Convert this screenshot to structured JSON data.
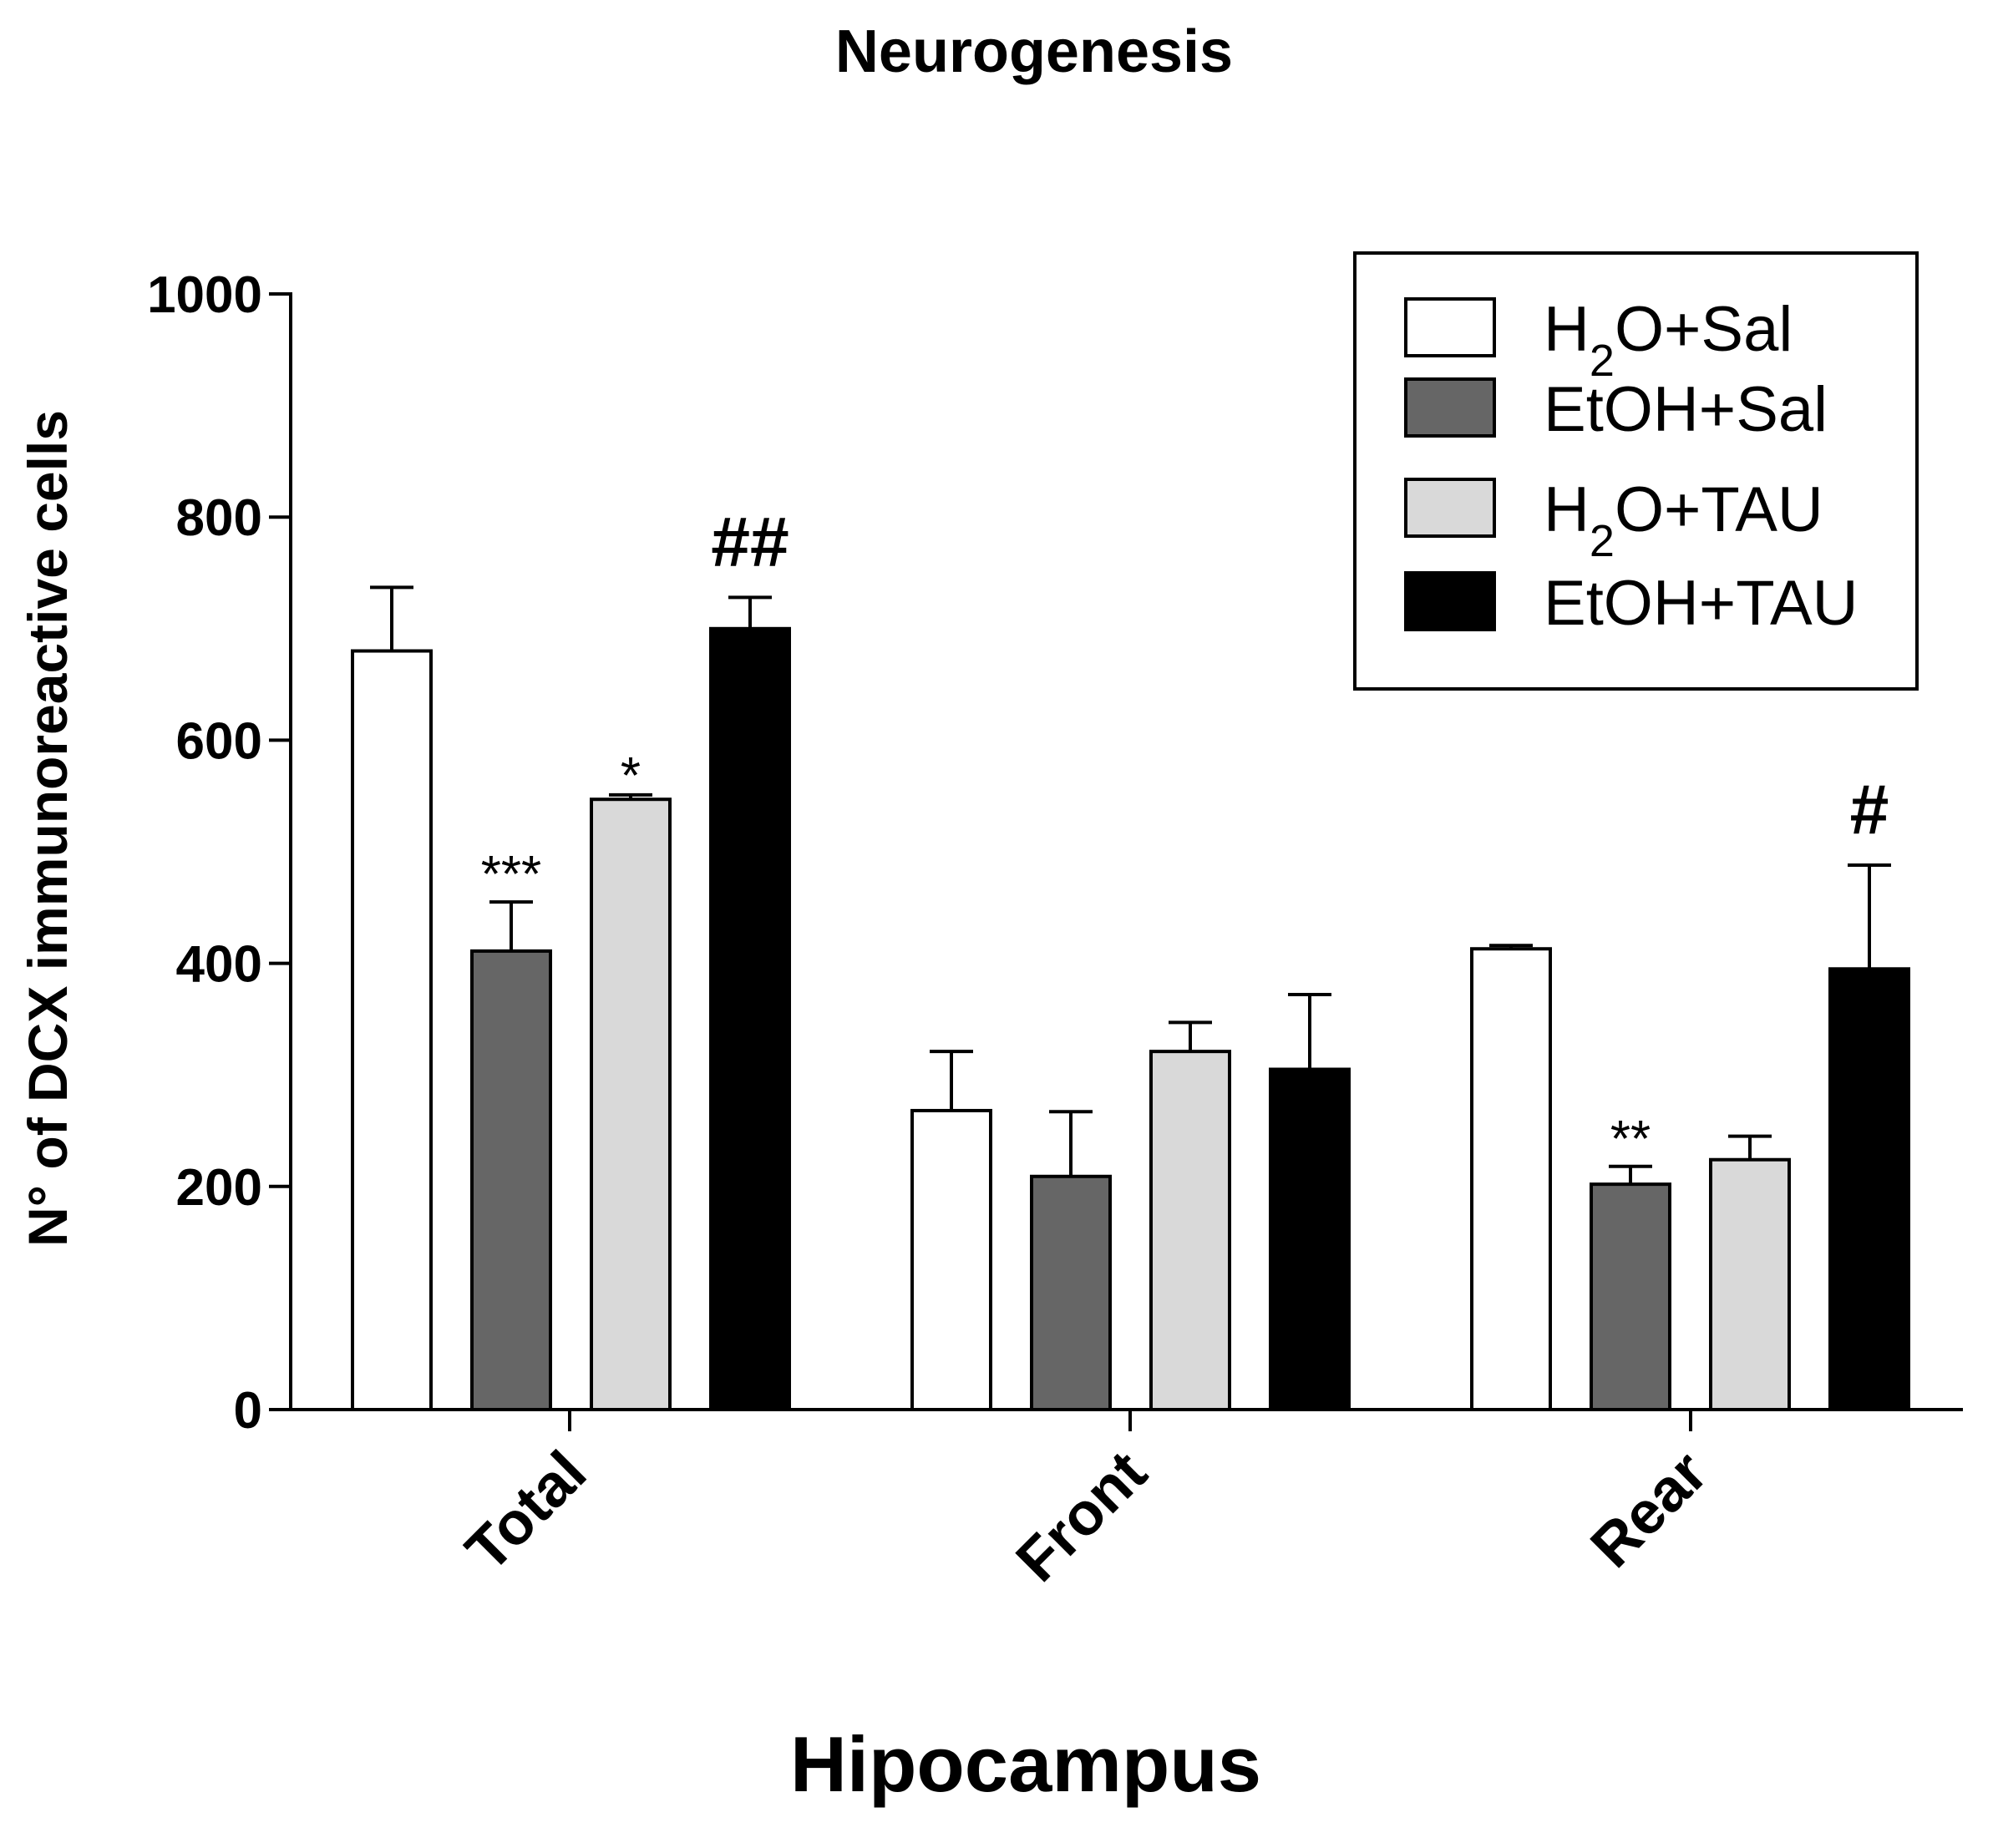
{
  "chart_data": {
    "type": "bar",
    "title": "Neurogenesis",
    "xlabel": "Hipocampus",
    "ylabel": "N° of DCX immunoreactive cells",
    "ylim": [
      0,
      1000
    ],
    "yticks": [
      "0",
      "200",
      "400",
      "600",
      "800",
      "1000"
    ],
    "categories": [
      "Total",
      "Front",
      "Rear"
    ],
    "series": [
      {
        "name_html": "H<tspan baseline-shift='sub' font-size='54'>2</tspan>O+Sal",
        "name": "H2O+Sal",
        "color": "#ffffff",
        "values": [
          680,
          268,
          413
        ],
        "errors": [
          57,
          53,
          3
        ]
      },
      {
        "name": "EtOH+Sal",
        "color": "#666666",
        "values": [
          411,
          209,
          202
        ],
        "errors": [
          44,
          58,
          16
        ]
      },
      {
        "name_html": "H<tspan baseline-shift='sub' font-size='54'>2</tspan>O+TAU",
        "name": "H2O+TAU",
        "color": "#d9d9d9",
        "values": [
          547,
          321,
          224
        ],
        "errors": [
          4,
          26,
          21
        ]
      },
      {
        "name": "EtOH+TAU",
        "color": "#000000",
        "values": [
          700,
          305,
          395
        ],
        "errors": [
          28,
          67,
          93
        ]
      }
    ],
    "annotations": [
      {
        "category": 0,
        "series": 1,
        "text": "***"
      },
      {
        "category": 0,
        "series": 2,
        "text": "*"
      },
      {
        "category": 0,
        "series": 3,
        "text": "##"
      },
      {
        "category": 2,
        "series": 1,
        "text": "**"
      },
      {
        "category": 2,
        "series": 3,
        "text": "#"
      }
    ],
    "legend_position": "top-right",
    "grid": false
  }
}
